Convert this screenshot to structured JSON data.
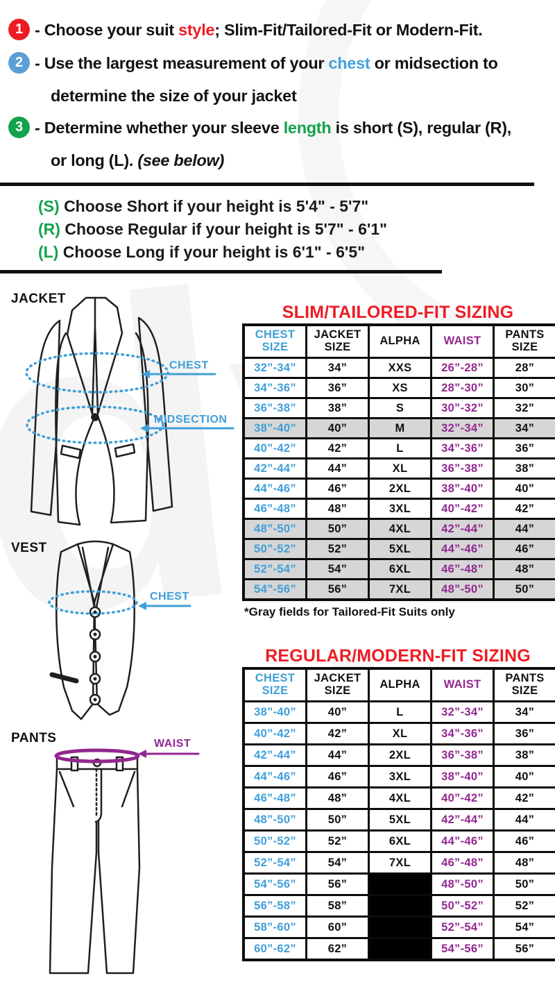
{
  "theme": {
    "red": "#ED1C24",
    "blue": "#3F9FD9",
    "green": "#12A34C",
    "purple": "#92278F",
    "gray_field": "#D6D6D6",
    "step_circle_colors": [
      "#ED1C24",
      "#5B9FD6",
      "#12A34C"
    ]
  },
  "instructions": {
    "steps": [
      {
        "num": "1",
        "pre": "- Choose your suit ",
        "highlight": "style",
        "post": "; Slim-Fit/Tailored-Fit or Modern-Fit."
      },
      {
        "num": "2",
        "pre": "- Use the largest measurement of your ",
        "highlight": "chest",
        "post": " or midsection to",
        "line2": "determine the size of your jacket"
      },
      {
        "num": "3",
        "pre": "- Determine whether your sleeve ",
        "highlight": "length",
        "post": " is short (S), regular (R),",
        "line2": "or long (L). ",
        "line2_italic": "(see below)"
      }
    ]
  },
  "height_guide": {
    "items": [
      {
        "prefix": "(S)",
        "text": "Choose Short if your height is 5'4\" - 5'7\""
      },
      {
        "prefix": "(R)",
        "text": "Choose Regular if your height is 5'7\" - 6'1\""
      },
      {
        "prefix": "(L)",
        "text": "Choose Long if your height is 6'1\" - 6'5\""
      }
    ]
  },
  "diagrams": {
    "jacket_label": "JACKET",
    "vest_label": "VEST",
    "pants_label": "PANTS",
    "jacket_chest_label": "CHEST",
    "jacket_midsection_label": "MIDSECTION",
    "vest_chest_label": "CHEST",
    "pants_waist_label": "WAIST"
  },
  "slim_table": {
    "title": "SLIM/TAILORED-FIT SIZING",
    "note": "*Gray fields for Tailored-Fit Suits only",
    "headers": [
      "CHEST SIZE",
      "JACKET SIZE",
      "ALPHA",
      "WAIST",
      "PANTS SIZE"
    ],
    "rows": [
      {
        "chest": "32”-34”",
        "jacket": "34”",
        "alpha": "XXS",
        "waist": "26”-28”",
        "pants": "28”",
        "gray": false
      },
      {
        "chest": "34”-36”",
        "jacket": "36”",
        "alpha": "XS",
        "waist": "28”-30”",
        "pants": "30”",
        "gray": false
      },
      {
        "chest": "36”-38”",
        "jacket": "38”",
        "alpha": "S",
        "waist": "30”-32”",
        "pants": "32”",
        "gray": false
      },
      {
        "chest": "38”-40”",
        "jacket": "40”",
        "alpha": "M",
        "waist": "32”-34”",
        "pants": "34”",
        "gray": true
      },
      {
        "chest": "40”-42”",
        "jacket": "42”",
        "alpha": "L",
        "waist": "34”-36”",
        "pants": "36”",
        "gray": false
      },
      {
        "chest": "42”-44”",
        "jacket": "44”",
        "alpha": "XL",
        "waist": "36”-38”",
        "pants": "38”",
        "gray": false
      },
      {
        "chest": "44”-46”",
        "jacket": "46”",
        "alpha": "2XL",
        "waist": "38”-40”",
        "pants": "40”",
        "gray": false
      },
      {
        "chest": "46”-48”",
        "jacket": "48”",
        "alpha": "3XL",
        "waist": "40”-42”",
        "pants": "42”",
        "gray": false
      },
      {
        "chest": "48”-50”",
        "jacket": "50”",
        "alpha": "4XL",
        "waist": "42”-44”",
        "pants": "44”",
        "gray": true
      },
      {
        "chest": "50”-52”",
        "jacket": "52”",
        "alpha": "5XL",
        "waist": "44”-46”",
        "pants": "46”",
        "gray": true
      },
      {
        "chest": "52”-54”",
        "jacket": "54”",
        "alpha": "6XL",
        "waist": "46”-48”",
        "pants": "48”",
        "gray": true
      },
      {
        "chest": "54”-56”",
        "jacket": "56”",
        "alpha": "7XL",
        "waist": "48”-50”",
        "pants": "50”",
        "gray": true
      }
    ]
  },
  "regular_table": {
    "title": "REGULAR/MODERN-FIT SIZING",
    "headers": [
      "CHEST SIZE",
      "JACKET SIZE",
      "ALPHA",
      "WAIST",
      "PANTS SIZE"
    ],
    "rows": [
      {
        "chest": "38”-40”",
        "jacket": "40”",
        "alpha": "L",
        "waist": "32”-34”",
        "pants": "34”",
        "gray": false
      },
      {
        "chest": "40”-42”",
        "jacket": "42”",
        "alpha": "XL",
        "waist": "34”-36”",
        "pants": "36”",
        "gray": false
      },
      {
        "chest": "42”-44”",
        "jacket": "44”",
        "alpha": "2XL",
        "waist": "36”-38”",
        "pants": "38”",
        "gray": false
      },
      {
        "chest": "44”-46”",
        "jacket": "46”",
        "alpha": "3XL",
        "waist": "38”-40”",
        "pants": "40”",
        "gray": false
      },
      {
        "chest": "46”-48”",
        "jacket": "48”",
        "alpha": "4XL",
        "waist": "40”-42”",
        "pants": "42”",
        "gray": false
      },
      {
        "chest": "48”-50”",
        "jacket": "50”",
        "alpha": "5XL",
        "waist": "42”-44”",
        "pants": "44”",
        "gray": false
      },
      {
        "chest": "50”-52”",
        "jacket": "52”",
        "alpha": "6XL",
        "waist": "44”-46”",
        "pants": "46”",
        "gray": false
      },
      {
        "chest": "52”-54”",
        "jacket": "54”",
        "alpha": "7XL",
        "waist": "46”-48”",
        "pants": "48”",
        "gray": false
      },
      {
        "chest": "54”-56”",
        "jacket": "56”",
        "alpha": null,
        "waist": "48”-50”",
        "pants": "50”",
        "gray": false
      },
      {
        "chest": "56”-58”",
        "jacket": "58”",
        "alpha": null,
        "waist": "50”-52”",
        "pants": "52”",
        "gray": false
      },
      {
        "chest": "58”-60”",
        "jacket": "60”",
        "alpha": null,
        "waist": "52”-54”",
        "pants": "54”",
        "gray": false
      },
      {
        "chest": "60”-62”",
        "jacket": "62”",
        "alpha": null,
        "waist": "54”-56”",
        "pants": "56”",
        "gray": false
      }
    ]
  }
}
